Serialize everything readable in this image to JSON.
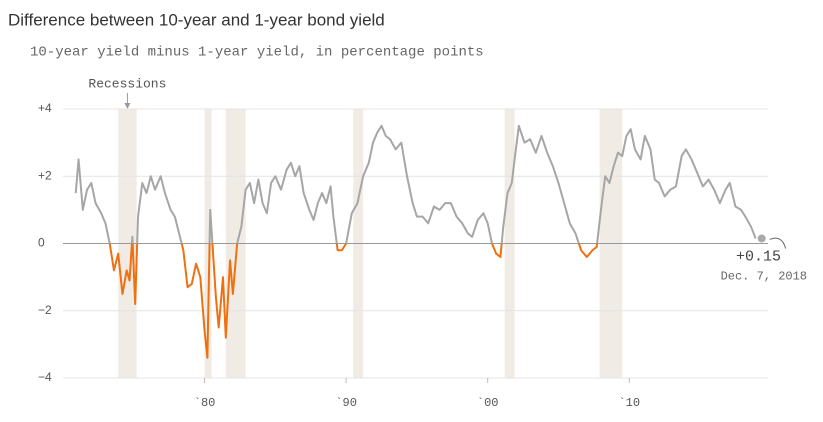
{
  "chart_data": {
    "type": "line",
    "title": "Difference between 10-year and 1-year bond yield",
    "subtitle": "10-year yield minus 1-year yield, in percentage points",
    "x": [
      1970.9,
      1971.1,
      1971.4,
      1971.7,
      1972.0,
      1972.3,
      1972.7,
      1973.0,
      1973.3,
      1973.6,
      1973.9,
      1974.2,
      1974.5,
      1974.7,
      1974.9,
      1975.1,
      1975.3,
      1975.6,
      1975.9,
      1976.2,
      1976.5,
      1976.9,
      1977.2,
      1977.6,
      1977.9,
      1978.2,
      1978.5,
      1978.8,
      1979.1,
      1979.4,
      1979.7,
      1980.0,
      1980.2,
      1980.4,
      1980.6,
      1980.8,
      1981.0,
      1981.3,
      1981.5,
      1981.8,
      1982.0,
      1982.3,
      1982.6,
      1982.9,
      1983.2,
      1983.5,
      1983.8,
      1984.1,
      1984.4,
      1984.7,
      1985.0,
      1985.4,
      1985.8,
      1986.1,
      1986.4,
      1986.7,
      1987.0,
      1987.4,
      1987.7,
      1988.0,
      1988.3,
      1988.6,
      1988.9,
      1989.1,
      1989.4,
      1989.7,
      1990.0,
      1990.4,
      1990.8,
      1991.2,
      1991.6,
      1991.9,
      1992.2,
      1992.5,
      1992.8,
      1993.1,
      1993.5,
      1993.9,
      1994.3,
      1994.7,
      1995.0,
      1995.4,
      1995.8,
      1996.2,
      1996.6,
      1997.0,
      1997.4,
      1997.8,
      1998.2,
      1998.6,
      1998.9,
      1999.3,
      1999.7,
      2000.0,
      2000.3,
      2000.6,
      2000.9,
      2001.1,
      2001.4,
      2001.7,
      2001.9,
      2002.2,
      2002.6,
      2003.0,
      2003.4,
      2003.8,
      2004.2,
      2004.6,
      2005.0,
      2005.4,
      2005.8,
      2006.2,
      2006.6,
      2007.0,
      2007.4,
      2007.7,
      2008.0,
      2008.3,
      2008.6,
      2008.9,
      2009.2,
      2009.5,
      2009.8,
      2010.1,
      2010.4,
      2010.8,
      2011.1,
      2011.5,
      2011.8,
      2012.1,
      2012.5,
      2012.9,
      2013.3,
      2013.7,
      2014.0,
      2014.4,
      2014.8,
      2015.2,
      2015.6,
      2016.0,
      2016.4,
      2016.8,
      2017.1,
      2017.5,
      2017.9,
      2018.2,
      2018.6,
      2018.93
    ],
    "series": [
      {
        "values": [
          1.5,
          2.5,
          1.0,
          1.6,
          1.8,
          1.2,
          0.9,
          0.6,
          0.0,
          -0.8,
          -0.3,
          -1.5,
          -0.8,
          -1.1,
          0.2,
          -1.8,
          0.8,
          1.8,
          1.5,
          2.0,
          1.6,
          2.0,
          1.5,
          1.0,
          0.8,
          0.3,
          -0.2,
          -1.3,
          -1.2,
          -0.6,
          -1.0,
          -2.6,
          -3.4,
          1.0,
          -0.3,
          -1.6,
          -2.5,
          -1.0,
          -2.8,
          -0.5,
          -1.5,
          0.0,
          0.5,
          1.6,
          1.8,
          1.2,
          1.9,
          1.2,
          0.9,
          1.8,
          2.0,
          1.6,
          2.2,
          2.4,
          2.0,
          2.3,
          1.5,
          1.0,
          0.7,
          1.2,
          1.5,
          1.2,
          1.7,
          0.8,
          -0.2,
          -0.2,
          0.0,
          0.9,
          1.2,
          2.0,
          2.4,
          3.0,
          3.3,
          3.5,
          3.2,
          3.1,
          2.8,
          3.0,
          2.0,
          1.2,
          0.8,
          0.8,
          0.6,
          1.1,
          1.0,
          1.2,
          1.2,
          0.8,
          0.6,
          0.3,
          0.2,
          0.7,
          0.9,
          0.6,
          0.0,
          -0.3,
          -0.4,
          0.5,
          1.5,
          1.8,
          2.5,
          3.5,
          3.0,
          3.1,
          2.7,
          3.2,
          2.7,
          2.3,
          1.8,
          1.2,
          0.6,
          0.3,
          -0.2,
          -0.4,
          -0.2,
          -0.1,
          1.0,
          2.0,
          1.8,
          2.3,
          2.7,
          2.6,
          3.2,
          3.4,
          2.8,
          2.5,
          3.2,
          2.8,
          1.9,
          1.8,
          1.4,
          1.6,
          1.7,
          2.6,
          2.8,
          2.5,
          2.1,
          1.7,
          1.9,
          1.6,
          1.2,
          1.6,
          1.8,
          1.1,
          1.0,
          0.8,
          0.5,
          0.15
        ]
      }
    ],
    "color": "#a6a6a6",
    "negative_color": "#f07010",
    "recessions": [
      [
        1973.9,
        1975.2
      ],
      [
        1980.0,
        1980.5
      ],
      [
        1981.5,
        1982.9
      ],
      [
        1990.5,
        1991.2
      ],
      [
        2001.2,
        2001.9
      ],
      [
        2007.9,
        2009.5
      ]
    ],
    "recession_color": "#f0ebe4",
    "recession_label": "Recessions",
    "last_value_label": "+0.15",
    "last_date_label": "Dec. 7, 2018",
    "xlim": [
      1970,
      2019.8
    ],
    "xticks": [
      {
        "value": 1980,
        "label": "`80"
      },
      {
        "value": 1990,
        "label": "`90"
      },
      {
        "value": 2000,
        "label": "`00"
      },
      {
        "value": 2010,
        "label": "`10"
      }
    ],
    "ylim": [
      -4,
      4
    ],
    "yticks": [
      {
        "value": 4,
        "label": "+4"
      },
      {
        "value": 2,
        "label": "+2"
      },
      0,
      {
        "value": -2,
        "label": "−2"
      },
      {
        "value": -4,
        "label": "−4"
      }
    ],
    "grid": true
  }
}
